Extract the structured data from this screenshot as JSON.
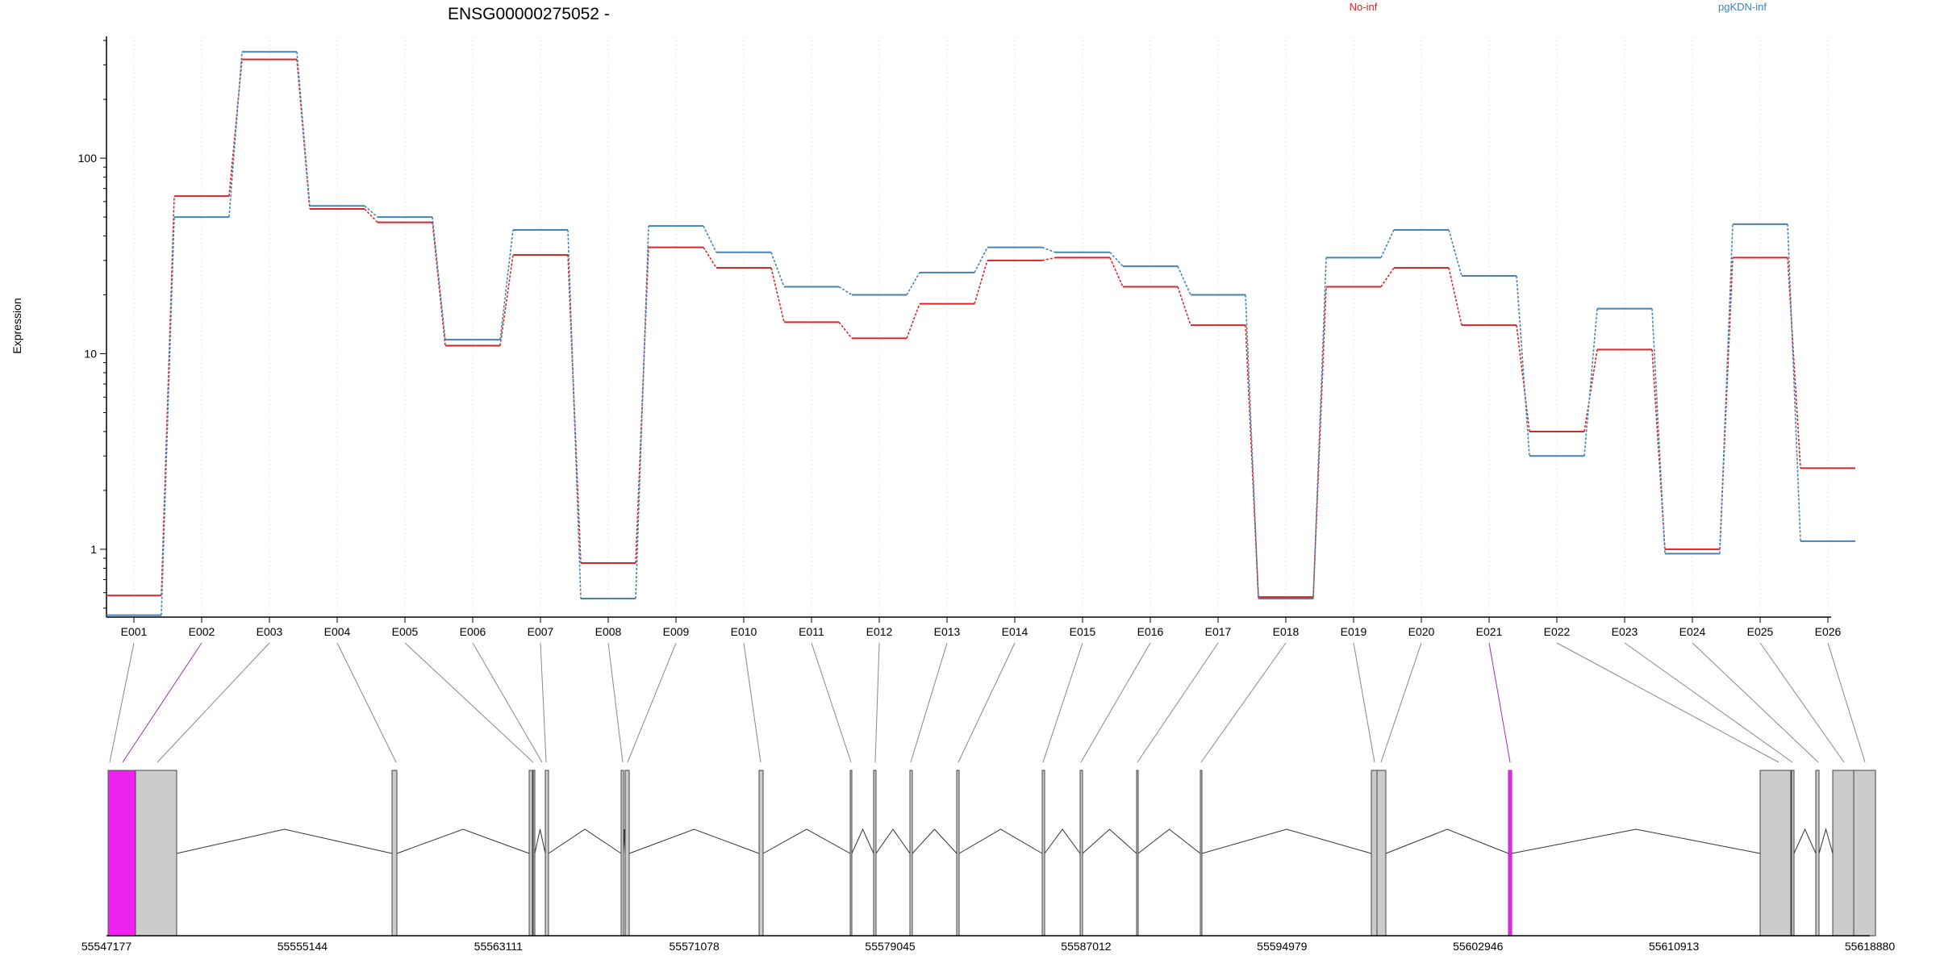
{
  "chart_data": {
    "type": "line",
    "title": "ENSG00000275052 -",
    "ylabel": "Expression",
    "xlabel": "",
    "y_scale": "log",
    "ylim": [
      0.45,
      420
    ],
    "y_ticks": [
      {
        "value": 1,
        "label": "1"
      },
      {
        "value": 10,
        "label": "10"
      },
      {
        "value": 100,
        "label": "100"
      }
    ],
    "grid": "vertical dotted lines at exon positions",
    "legend_placement": "top, horizontal",
    "categories": [
      "E001",
      "E002",
      "E003",
      "E004",
      "E005",
      "E006",
      "E007",
      "E008",
      "E009",
      "E010",
      "E011",
      "E012",
      "E013",
      "E014",
      "E015",
      "E016",
      "E017",
      "E018",
      "E019",
      "E020",
      "E021",
      "E022",
      "E023",
      "E024",
      "E025",
      "E026"
    ],
    "series": [
      {
        "name": "No-inf",
        "color": "#d62728",
        "values": [
          0.58,
          64,
          320,
          55,
          47,
          11,
          32,
          0.85,
          35,
          27.5,
          14.5,
          12,
          18,
          30,
          31,
          22,
          14,
          0.57,
          22,
          27.5,
          14,
          4,
          10.5,
          1.0,
          31,
          2.6
        ]
      },
      {
        "name": "pgKDN-inf",
        "color": "#4682b4",
        "values": [
          0.46,
          50,
          350,
          57,
          50,
          11.8,
          43,
          0.56,
          45,
          33,
          22,
          20,
          26,
          35,
          33,
          28,
          20,
          0.56,
          31,
          43,
          25,
          3,
          17,
          0.95,
          46,
          1.1
        ]
      }
    ],
    "gene_model": {
      "coordinate_ticks": [
        "55547177",
        "55555144",
        "55563111",
        "55571078",
        "55579045",
        "55587012",
        "55594979",
        "55602946",
        "55610913",
        "55618880"
      ],
      "coord_start": 55547177,
      "coord_end": 55618880,
      "exon_fill": "#cccccc",
      "highlight_fill": "#ee22ee",
      "highlight_line": "#9933aa"
    }
  }
}
